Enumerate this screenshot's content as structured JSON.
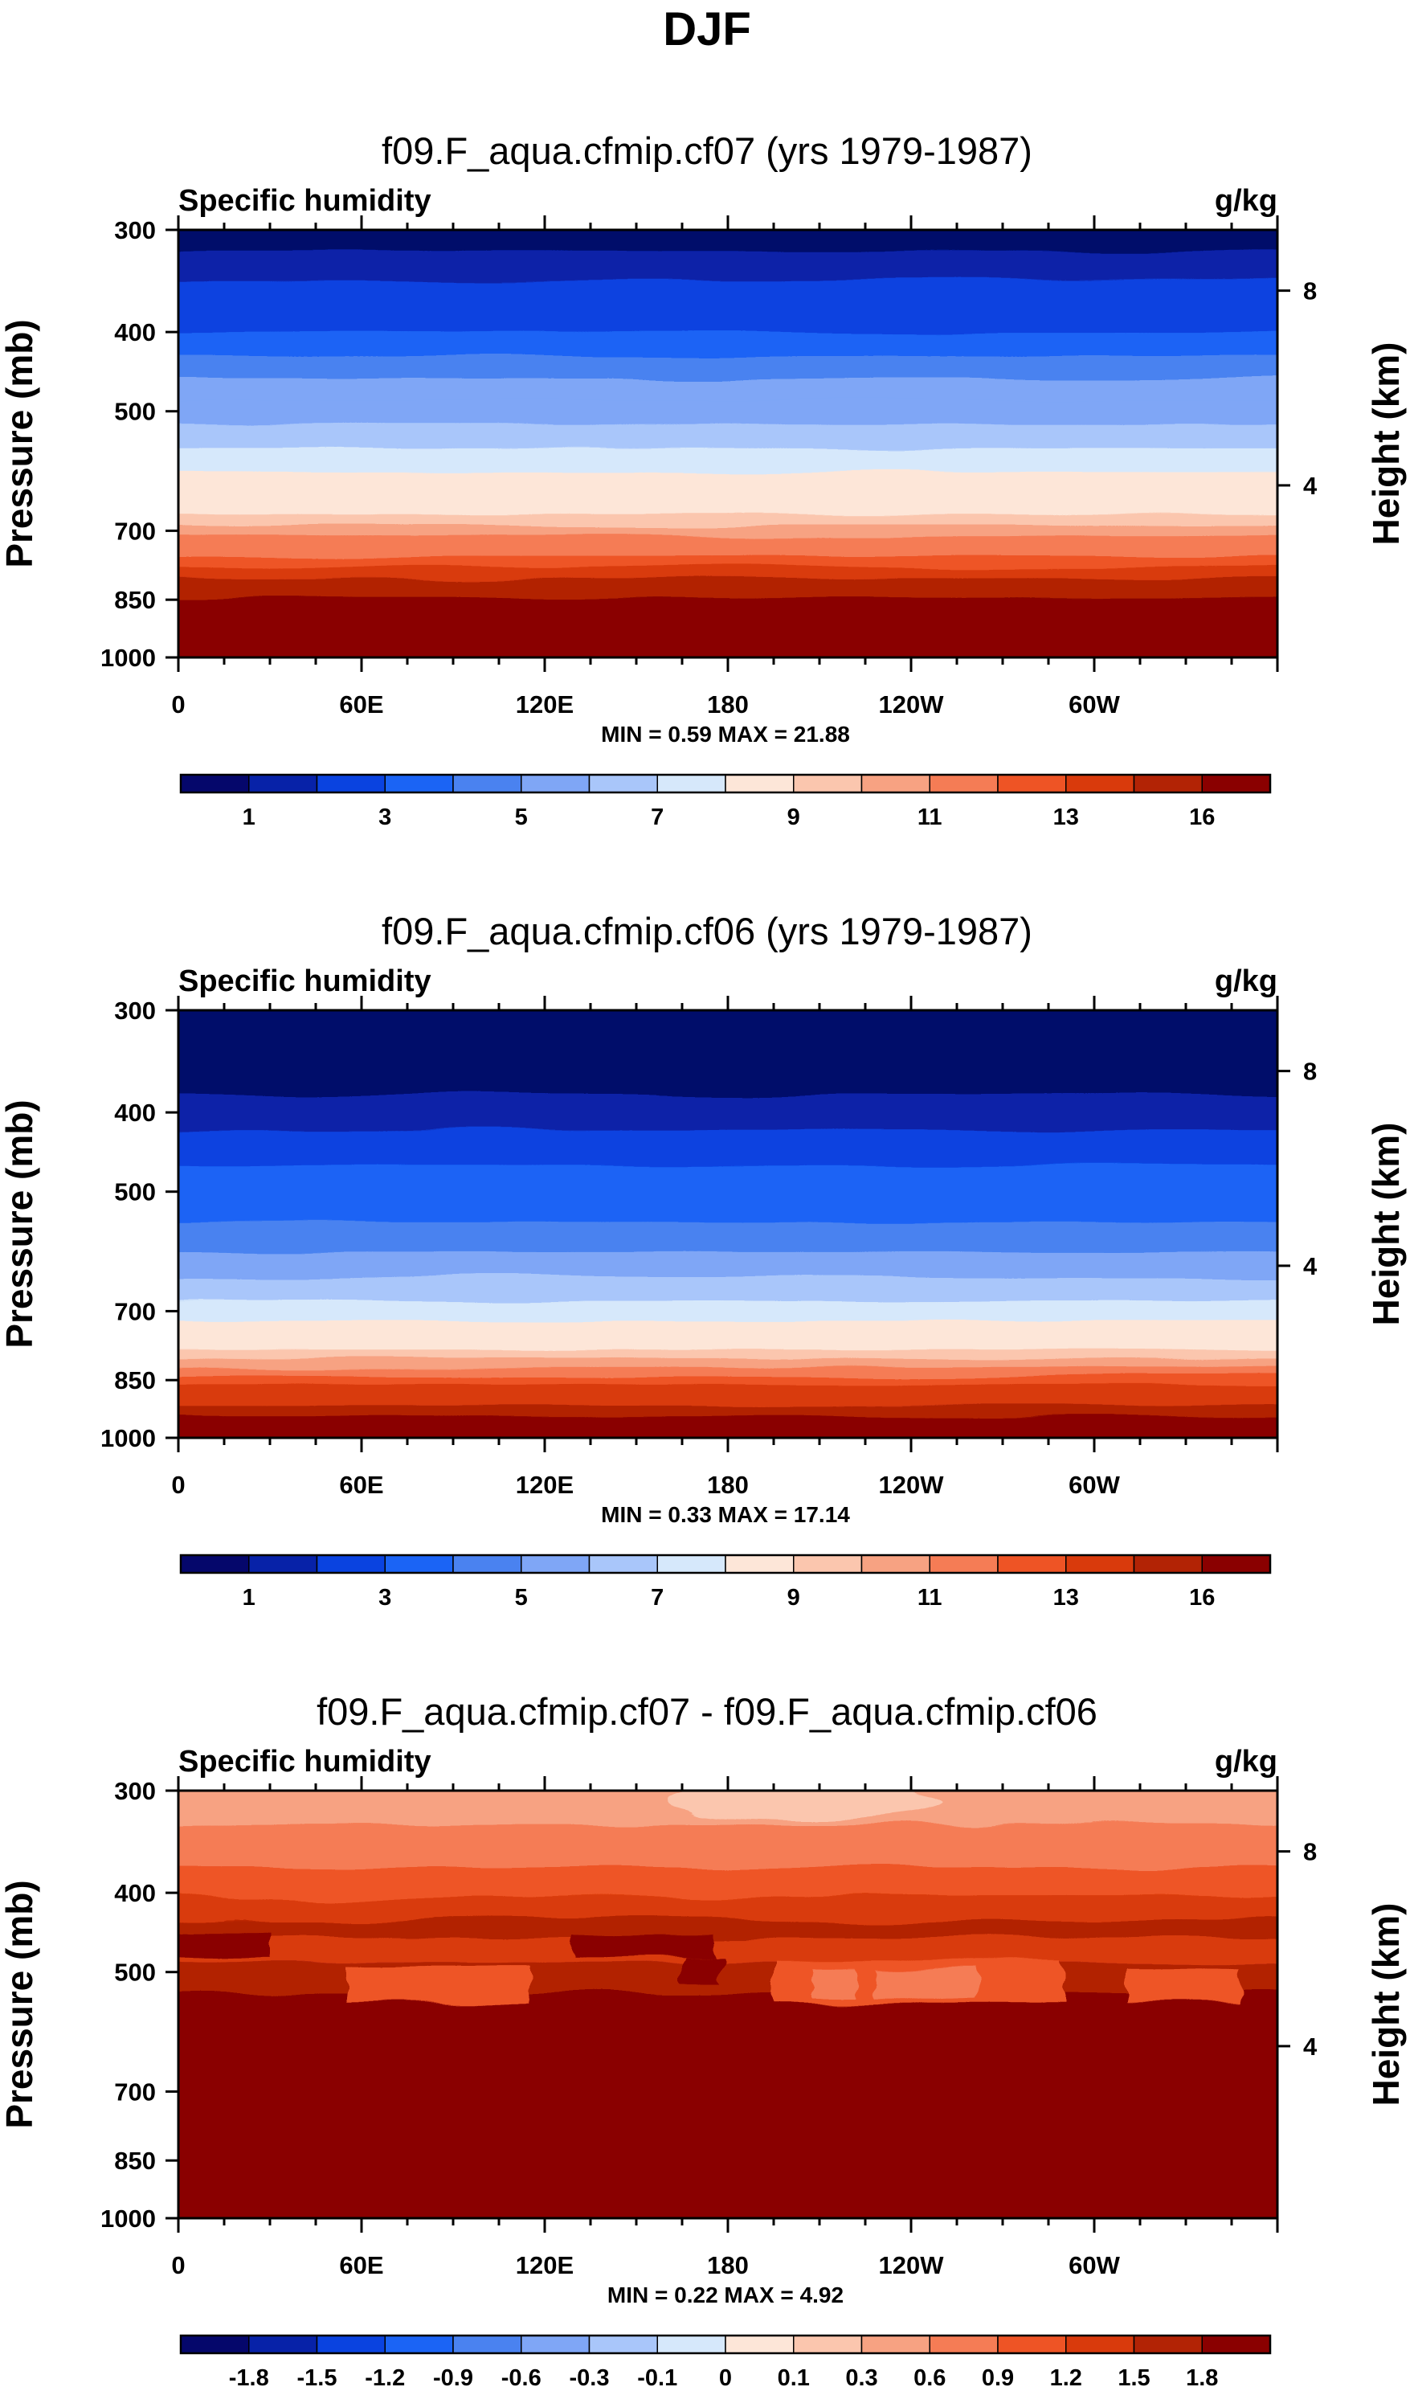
{
  "figure": {
    "title": "DJF"
  },
  "colorbar_colors": [
    "#05076b",
    "#0722a8",
    "#0a43e0",
    "#1b64f5",
    "#4a82f0",
    "#7fa6f6",
    "#a9c6fa",
    "#d6e8fb",
    "#fde6d8",
    "#fbc6ae",
    "#f7a282",
    "#f57c55",
    "#ee5425",
    "#d93a0c",
    "#b22305",
    "#8a0000"
  ],
  "chart_data": [
    {
      "type": "heatmap",
      "title": "f09.F_aqua.cfmip.cf07 (yrs 1979-1987)",
      "left_label": "Specific humidity",
      "right_label": "g/kg",
      "ylabel": "Pressure (mb)",
      "ylabel_right": "Height (km)",
      "x_ticks": [
        "0",
        "60E",
        "120E",
        "180",
        "120W",
        "60W"
      ],
      "x_tick_values": [
        0,
        60,
        120,
        180,
        240,
        300
      ],
      "xlim": [
        0,
        360
      ],
      "y_ticks": [
        "300",
        "400",
        "500",
        "700",
        "850",
        "1000"
      ],
      "y_tick_values": [
        300,
        400,
        500,
        700,
        850,
        1000
      ],
      "ylim": [
        1000,
        300
      ],
      "y_scale": "log",
      "right_ticks": [
        "8",
        "4"
      ],
      "right_tick_pressures": [
        356,
        616
      ],
      "stats": "MIN =   0.59  MAX =  21.88",
      "colorbar_labels": [
        "1",
        "3",
        "5",
        "7",
        "9",
        "11",
        "13",
        "16"
      ],
      "band_boundaries": [
        300,
        318,
        345,
        373,
        400,
        428,
        456,
        485,
        519,
        555,
        594,
        636,
        668,
        690,
        710,
        730,
        752,
        775,
        800,
        822,
        846,
        873
      ]
    },
    {
      "type": "heatmap",
      "title": "f09.F_aqua.cfmip.cf06 (yrs 1979-1987)",
      "left_label": "Specific humidity",
      "right_label": "g/kg",
      "ylabel": "Pressure (mb)",
      "ylabel_right": "Height (km)",
      "x_ticks": [
        "0",
        "60E",
        "120E",
        "180",
        "120W",
        "60W"
      ],
      "x_tick_values": [
        0,
        60,
        120,
        180,
        240,
        300
      ],
      "xlim": [
        0,
        360
      ],
      "y_ticks": [
        "300",
        "400",
        "500",
        "700",
        "850",
        "1000"
      ],
      "y_tick_values": [
        300,
        400,
        500,
        700,
        850,
        1000
      ],
      "ylim": [
        1000,
        300
      ],
      "y_scale": "log",
      "right_ticks": [
        "8",
        "4"
      ],
      "right_tick_pressures": [
        356,
        616
      ],
      "stats": "MIN =   0.33  MAX =  17.14",
      "colorbar_labels": [
        "1",
        "3",
        "5",
        "7",
        "9",
        "11",
        "13",
        "16"
      ],
      "band_boundaries": [
        300,
        380,
        420,
        463,
        505,
        545,
        592,
        636,
        680,
        720,
        755,
        780,
        800,
        820,
        840,
        862,
        885,
        912,
        940,
        968
      ]
    },
    {
      "type": "heatmap",
      "title": "f09.F_aqua.cfmip.cf07 - f09.F_aqua.cfmip.cf06",
      "left_label": "Specific humidity",
      "right_label": "g/kg",
      "ylabel": "Pressure (mb)",
      "ylabel_right": "Height (km)",
      "x_ticks": [
        "0",
        "60E",
        "120E",
        "180",
        "120W",
        "60W"
      ],
      "x_tick_values": [
        0,
        60,
        120,
        180,
        240,
        300
      ],
      "xlim": [
        0,
        360
      ],
      "y_ticks": [
        "300",
        "400",
        "500",
        "700",
        "850",
        "1000"
      ],
      "y_tick_values": [
        300,
        400,
        500,
        700,
        850,
        1000
      ],
      "ylim": [
        1000,
        300
      ],
      "y_scale": "log",
      "right_ticks": [
        "8",
        "4"
      ],
      "right_tick_pressures": [
        356,
        616
      ],
      "stats": "MIN =   0.22  MAX =   4.92",
      "colorbar_labels": [
        "-1.8",
        "-1.5",
        "-1.2",
        "-0.9",
        "-0.6",
        "-0.3",
        "-0.1",
        "0",
        "0.1",
        "0.3",
        "0.6",
        "0.9",
        "1.2",
        "1.5",
        "1.8"
      ],
      "band_boundaries": [
        300,
        330,
        372,
        405,
        432,
        455,
        486,
        530,
        572
      ]
    }
  ]
}
